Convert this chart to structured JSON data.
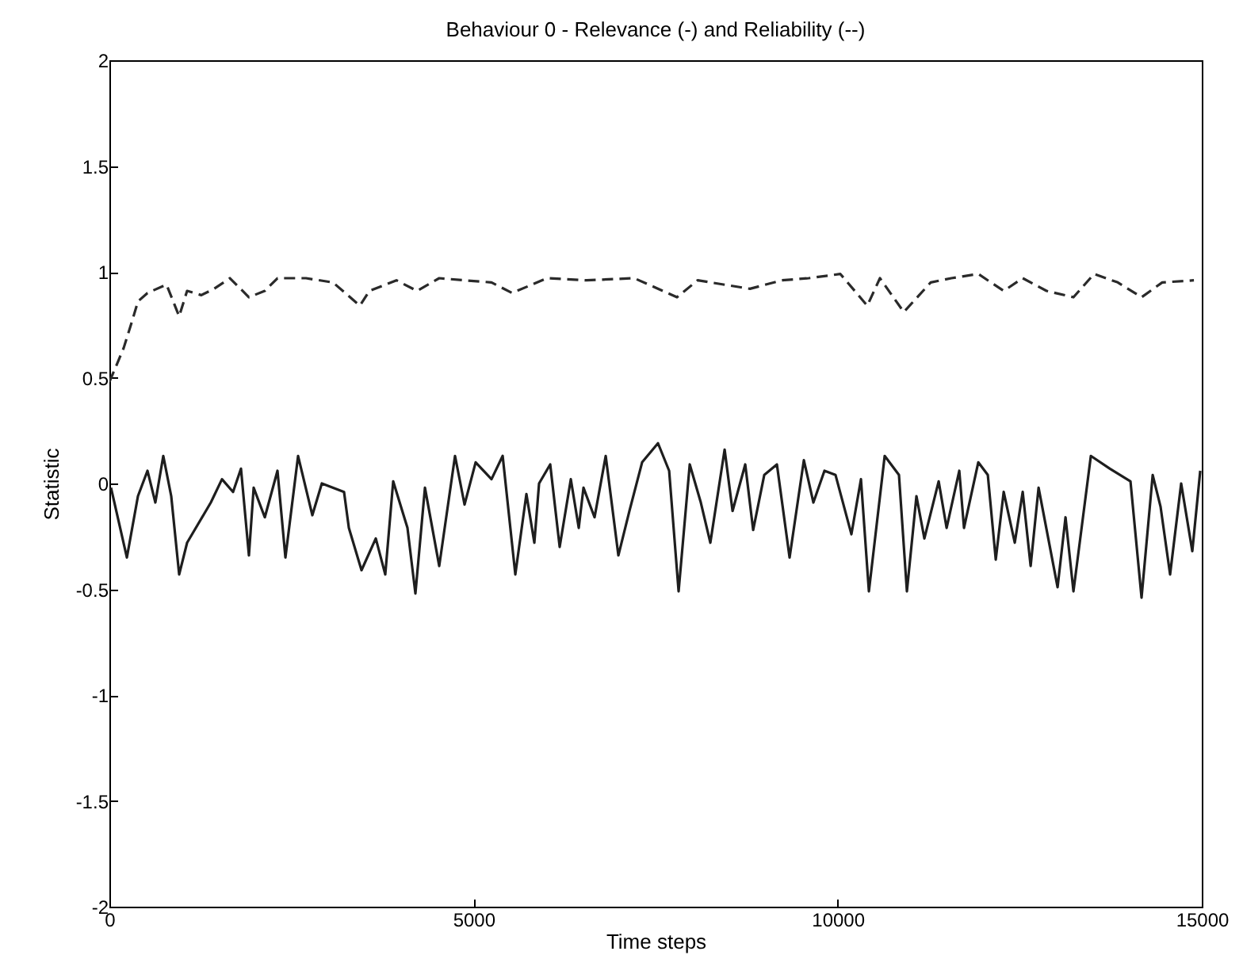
{
  "chart_data": {
    "type": "line",
    "title": "Behaviour 0 - Relevance (-) and Reliability (--)",
    "xlabel": "Time steps",
    "ylabel": "Statistic",
    "xlim": [
      0,
      15000
    ],
    "xticks": [
      0,
      5000,
      10000,
      15000
    ],
    "ylim": [
      -2,
      2
    ],
    "yticks": [
      -2,
      -1.5,
      -1,
      -0.5,
      0,
      0.5,
      1,
      1.5,
      2
    ],
    "grid": false,
    "series": [
      {
        "color": "#1e1e1e",
        "line_style": "solid",
        "x": [
          22,
          240,
          392,
          523,
          631,
          740,
          849,
          958,
          1067,
          1393,
          1546,
          1698,
          1807,
          1916,
          1981,
          2134,
          2308,
          2417,
          2591,
          2787,
          2917,
          3222,
          3288,
          3462,
          3658,
          3788,
          3897,
          4093,
          4202,
          4333,
          4529,
          4746,
          4877,
          5029,
          5247,
          5400,
          5574,
          5726,
          5835,
          5900,
          6053,
          6183,
          6336,
          6445,
          6510,
          6662,
          6815,
          6989,
          7141,
          7315,
          7533,
          7686,
          7816,
          7969,
          8121,
          8252,
          8448,
          8557,
          8731,
          8840,
          8992,
          9166,
          9340,
          9536,
          9667,
          9819,
          9971,
          10189,
          10320,
          10429,
          10646,
          10842,
          10951,
          11082,
          11191,
          11387,
          11496,
          11670,
          11735,
          11931,
          12062,
          12171,
          12280,
          12432,
          12541,
          12650,
          12759,
          13020,
          13129,
          13238,
          13477,
          13738,
          14021,
          14173,
          14326,
          14434,
          14565,
          14717,
          14870,
          14979
        ],
        "values": [
          -0.02,
          -0.35,
          -0.06,
          0.06,
          -0.09,
          0.13,
          -0.06,
          -0.43,
          -0.28,
          -0.09,
          0.02,
          -0.04,
          0.07,
          -0.34,
          -0.02,
          -0.16,
          0.06,
          -0.35,
          0.13,
          -0.15,
          0,
          -0.04,
          -0.21,
          -0.41,
          -0.26,
          -0.43,
          0.01,
          -0.21,
          -0.52,
          -0.02,
          -0.39,
          0.13,
          -0.1,
          0.1,
          0.02,
          0.13,
          -0.43,
          -0.05,
          -0.28,
          0,
          0.09,
          -0.3,
          0.02,
          -0.21,
          -0.02,
          -0.16,
          0.13,
          -0.34,
          -0.13,
          0.1,
          0.19,
          0.06,
          -0.51,
          0.09,
          -0.09,
          -0.28,
          0.16,
          -0.13,
          0.09,
          -0.22,
          0.04,
          0.09,
          -0.35,
          0.11,
          -0.09,
          0.06,
          0.04,
          -0.24,
          0.02,
          -0.51,
          0.13,
          0.04,
          -0.51,
          -0.06,
          -0.26,
          0.01,
          -0.21,
          0.06,
          -0.21,
          0.1,
          0.04,
          -0.36,
          -0.04,
          -0.28,
          -0.04,
          -0.39,
          -0.02,
          -0.49,
          -0.16,
          -0.51,
          0.13,
          0.07,
          0.01,
          -0.54,
          0.04,
          -0.11,
          -0.43,
          0,
          -0.32,
          0.06
        ]
      },
      {
        "color": "#2a2a2a",
        "line_style": "dashed",
        "x": [
          0,
          87,
          196,
          305,
          392,
          523,
          784,
          958,
          1067,
          1263,
          1437,
          1655,
          1916,
          2134,
          2308,
          2700,
          3070,
          3440,
          3571,
          3941,
          4224,
          4529,
          4877,
          5247,
          5530,
          6009,
          6554,
          7207,
          7794,
          8077,
          8796,
          9232,
          9602,
          10037,
          10407,
          10581,
          10908,
          11278,
          11561,
          11931,
          12280,
          12541,
          12868,
          13238,
          13521,
          13847,
          14173,
          14457,
          14892
        ],
        "values": [
          0.48,
          0.55,
          0.64,
          0.76,
          0.86,
          0.9,
          0.94,
          0.79,
          0.91,
          0.89,
          0.92,
          0.97,
          0.88,
          0.91,
          0.97,
          0.97,
          0.95,
          0.84,
          0.91,
          0.96,
          0.91,
          0.97,
          0.96,
          0.95,
          0.9,
          0.97,
          0.96,
          0.97,
          0.88,
          0.96,
          0.92,
          0.96,
          0.97,
          0.99,
          0.84,
          0.97,
          0.81,
          0.95,
          0.97,
          0.99,
          0.91,
          0.97,
          0.91,
          0.88,
          0.99,
          0.95,
          0.88,
          0.95,
          0.96
        ]
      }
    ]
  }
}
